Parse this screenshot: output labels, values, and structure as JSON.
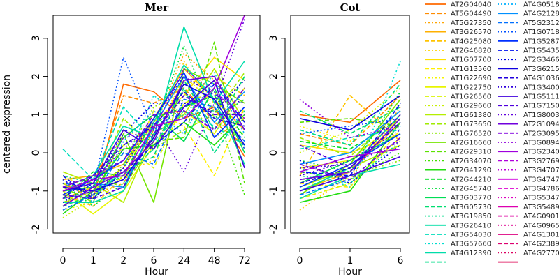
{
  "chart_data": [
    {
      "type": "line",
      "title": "Mer",
      "xlabel": "Hour",
      "ylabel": "centered expression",
      "categories": [
        "0",
        "1",
        "2",
        "6",
        "24",
        "48",
        "72"
      ],
      "yticks": [
        "-2",
        "-1",
        "0",
        "1",
        "2",
        "3"
      ],
      "ylim": [
        -2.1,
        3.6
      ],
      "series": [
        {
          "values": [
            -0.8,
            -1.2,
            1.8,
            1.6,
            0.9,
            1.2,
            -0.1
          ]
        },
        {
          "values": [
            -1.0,
            -0.9,
            1.5,
            1.3,
            1.7,
            0.8,
            0.2
          ]
        },
        {
          "values": [
            -1.3,
            -1.1,
            -0.8,
            0.6,
            2.6,
            1.9,
            1.0
          ]
        },
        {
          "values": [
            -0.7,
            -0.6,
            -0.3,
            0.9,
            2.2,
            1.4,
            0.6
          ]
        },
        {
          "values": [
            -1.1,
            -1.4,
            -0.6,
            0.4,
            1.8,
            2.0,
            1.5
          ]
        },
        {
          "values": [
            -0.9,
            -0.8,
            -0.5,
            -0.2,
            2.4,
            1.1,
            0.3
          ]
        },
        {
          "values": [
            -1.2,
            -0.9,
            -0.4,
            0.8,
            1.5,
            2.5,
            1.9
          ]
        },
        {
          "values": [
            -0.6,
            -1.0,
            -0.7,
            1.1,
            0.7,
            -0.6,
            1.2
          ]
        },
        {
          "values": [
            -1.5,
            -1.3,
            0.6,
            0.3,
            2.0,
            1.3,
            0.9
          ]
        },
        {
          "values": [
            -1.0,
            -1.6,
            -1.0,
            0.2,
            1.1,
            0.5,
            1.7
          ]
        },
        {
          "values": [
            -0.8,
            -1.1,
            0.2,
            -0.4,
            1.3,
            1.6,
            0.1
          ]
        },
        {
          "values": [
            -1.7,
            -1.2,
            -0.6,
            0.9,
            1.9,
            0.8,
            0.5
          ]
        },
        {
          "values": [
            -0.5,
            -0.8,
            -1.3,
            0.5,
            1.0,
            2.2,
            0.8
          ]
        },
        {
          "values": [
            -1.3,
            -1.0,
            0.9,
            0.1,
            0.6,
            1.0,
            2.1
          ]
        },
        {
          "values": [
            -1.4,
            -0.7,
            -0.2,
            1.2,
            1.6,
            0.4,
            0.9
          ]
        },
        {
          "values": [
            -0.9,
            -1.3,
            0.5,
            -1.3,
            2.2,
            1.8,
            1.3
          ]
        },
        {
          "values": [
            -1.1,
            -0.6,
            -0.9,
            0.3,
            0.4,
            2.9,
            -0.8
          ]
        },
        {
          "values": [
            -0.7,
            -1.2,
            -0.3,
            0.7,
            1.4,
            1.2,
            -1.1
          ]
        },
        {
          "values": [
            -1.6,
            -1.0,
            0.1,
            0.2,
            0.8,
            0.2,
            1.0
          ]
        },
        {
          "values": [
            -1.2,
            -0.5,
            -0.6,
            0.9,
            1.2,
            1.5,
            0.4
          ]
        },
        {
          "values": [
            -0.8,
            -1.4,
            -0.8,
            0.6,
            2.8,
            0.9,
            1.4
          ]
        },
        {
          "values": [
            -1.0,
            -0.9,
            0.4,
            1.0,
            0.3,
            1.7,
            0.0
          ]
        },
        {
          "values": [
            -1.4,
            -1.1,
            -0.5,
            -0.1,
            1.9,
            0.6,
            2.0
          ]
        },
        {
          "values": [
            -0.6,
            -0.8,
            0.0,
            0.5,
            1.0,
            1.1,
            0.7
          ]
        },
        {
          "values": [
            -1.3,
            -1.3,
            -1.0,
            0.8,
            2.3,
            1.4,
            -0.3
          ]
        },
        {
          "values": [
            0.1,
            -0.7,
            1.2,
            0.3,
            1.1,
            0.7,
            0.2
          ]
        },
        {
          "values": [
            -1.1,
            -1.2,
            -0.4,
            1.5,
            0.9,
            2.1,
            0.6
          ]
        },
        {
          "values": [
            -0.9,
            -0.6,
            0.7,
            0.4,
            3.3,
            1.3,
            2.4
          ]
        },
        {
          "values": [
            -1.2,
            -1.0,
            -0.6,
            0.1,
            1.7,
            0.0,
            1.1
          ]
        },
        {
          "values": [
            -0.7,
            -1.3,
            0.3,
            1.1,
            0.5,
            1.9,
            0.5
          ]
        },
        {
          "values": [
            -1.0,
            -0.8,
            -0.9,
            0.7,
            2.0,
            0.8,
            1.6
          ]
        },
        {
          "values": [
            -1.5,
            -1.1,
            0.0,
            -0.3,
            1.4,
            1.2,
            0.3
          ]
        },
        {
          "values": [
            -0.8,
            -0.9,
            2.5,
            0.6,
            1.2,
            1.6,
            0.1
          ]
        },
        {
          "values": [
            -1.1,
            -0.7,
            -0.2,
            0.9,
            2.1,
            0.4,
            1.2
          ]
        },
        {
          "values": [
            -0.6,
            -1.2,
            -0.5,
            0.2,
            0.8,
            1.8,
            0.8
          ]
        },
        {
          "values": [
            -1.3,
            -0.8,
            0.5,
            1.3,
            1.3,
            1.1,
            1.9
          ]
        },
        {
          "values": [
            -0.9,
            -1.0,
            -0.7,
            0.4,
            1.8,
            1.4,
            0.2
          ]
        },
        {
          "values": [
            -1.2,
            -0.6,
            0.2,
            0.7,
            1.6,
            0.9,
            0.7
          ]
        },
        {
          "values": [
            -0.7,
            -1.1,
            -0.4,
            0.9,
            2.0,
            1.5,
            1.3
          ]
        },
        {
          "values": [
            -1.0,
            -0.8,
            0.6,
            0.1,
            1.2,
            1.9,
            -0.4
          ]
        },
        {
          "values": [
            -1.1,
            -1.2,
            -0.9,
            0.5,
            1.5,
            1.0,
            1.0
          ]
        },
        {
          "values": [
            -0.8,
            -0.7,
            0.1,
            0.8,
            -0.5,
            1.3,
            3.5
          ]
        },
        {
          "values": [
            -1.4,
            -0.9,
            -0.5,
            0.3,
            1.9,
            2.0,
            0.6
          ]
        },
        {
          "values": [
            -0.9,
            -0.6,
            -0.2,
            1.0,
            1.1,
            0.6,
            1.7
          ]
        },
        {
          "values": [
            -1.2,
            -1.0,
            0.4,
            0.6,
            2.2,
            1.6,
            0.9
          ]
        },
        {
          "values": [
            -1.0,
            -0.7,
            -0.6,
            0.7,
            0.9,
            1.7,
            3.6
          ]
        }
      ]
    },
    {
      "type": "line",
      "title": "Cot",
      "xlabel": "Hour",
      "categories": [
        "0",
        "1",
        "6"
      ],
      "yticks": [
        "-2",
        "-1",
        "0",
        "1",
        "2",
        "3"
      ],
      "ylim": [
        -2.1,
        3.6
      ],
      "series": [
        {
          "values": [
            1.0,
            0.8,
            1.9
          ]
        },
        {
          "values": [
            0.5,
            0.2,
            1.5
          ]
        },
        {
          "values": [
            -0.3,
            -0.7,
            1.2
          ]
        },
        {
          "values": [
            -1.0,
            -0.5,
            0.8
          ]
        },
        {
          "values": [
            -0.6,
            1.5,
            0.3
          ]
        },
        {
          "values": [
            -1.5,
            -0.6,
            1.0
          ]
        },
        {
          "values": [
            0.2,
            0.0,
            0.5
          ]
        },
        {
          "values": [
            -0.8,
            -0.9,
            0.6
          ]
        },
        {
          "values": [
            0.7,
            0.3,
            1.3
          ]
        },
        {
          "values": [
            -0.4,
            -0.2,
            0.9
          ]
        },
        {
          "values": [
            -1.2,
            -0.8,
            0.4
          ]
        },
        {
          "values": [
            0.0,
            0.6,
            1.7
          ]
        },
        {
          "values": [
            -0.9,
            -0.4,
            0.2
          ]
        },
        {
          "values": [
            0.4,
            -0.1,
            1.1
          ]
        },
        {
          "values": [
            -0.7,
            -0.6,
            -0.2
          ]
        },
        {
          "values": [
            -1.1,
            -0.3,
            1.4
          ]
        },
        {
          "values": [
            0.8,
            0.9,
            0.7
          ]
        },
        {
          "values": [
            -0.5,
            -0.7,
            0.0
          ]
        },
        {
          "values": [
            -1.3,
            -1.0,
            0.8
          ]
        },
        {
          "values": [
            0.3,
            0.1,
            0.9
          ]
        },
        {
          "values": [
            -0.2,
            -0.5,
            1.6
          ]
        },
        {
          "values": [
            -0.8,
            -0.2,
            0.5
          ]
        },
        {
          "values": [
            1.1,
            0.5,
            1.2
          ]
        },
        {
          "values": [
            -0.6,
            -0.8,
            0.3
          ]
        },
        {
          "values": [
            -1.0,
            -0.4,
            1.0
          ]
        },
        {
          "values": [
            0.1,
            0.4,
            0.6
          ]
        },
        {
          "values": [
            -0.4,
            -0.9,
            2.4
          ]
        },
        {
          "values": [
            -1.2,
            -0.6,
            -0.3
          ]
        },
        {
          "values": [
            0.6,
            0.2,
            1.8
          ]
        },
        {
          "values": [
            -0.7,
            -0.5,
            0.7
          ]
        },
        {
          "values": [
            -0.3,
            0.0,
            1.1
          ]
        },
        {
          "values": [
            -1.1,
            -0.7,
            0.4
          ]
        },
        {
          "values": [
            0.5,
            0.7,
            0.9
          ]
        },
        {
          "values": [
            -0.9,
            -0.3,
            0.5
          ]
        },
        {
          "values": [
            -0.5,
            -0.6,
            1.3
          ]
        },
        {
          "values": [
            -0.2,
            -0.8,
            0.2
          ]
        },
        {
          "values": [
            0.9,
            0.6,
            1.5
          ]
        },
        {
          "values": [
            -0.8,
            -0.4,
            0.8
          ]
        },
        {
          "values": [
            -0.6,
            -0.2,
            0.6
          ]
        },
        {
          "values": [
            -1.0,
            -0.6,
            -0.1
          ]
        },
        {
          "values": [
            0.2,
            -0.4,
            1.0
          ]
        },
        {
          "values": [
            -0.4,
            -0.3,
            0.3
          ]
        },
        {
          "values": [
            -0.7,
            -0.5,
            0.9
          ]
        },
        {
          "values": [
            -0.3,
            -0.7,
            0.4
          ]
        },
        {
          "values": [
            1.4,
            0.4,
            0.7
          ]
        },
        {
          "values": [
            -0.5,
            -0.1,
            0.1
          ]
        }
      ]
    }
  ],
  "legend": {
    "placement": "right",
    "entries": [
      {
        "label": "AT2G04040",
        "color": "#ff6a00",
        "dash": "solid"
      },
      {
        "label": "AT5G04490",
        "color": "#ff8c00",
        "dash": "dashed"
      },
      {
        "label": "AT5G27350",
        "color": "#ffa500",
        "dash": "dotted"
      },
      {
        "label": "AT3G26570",
        "color": "#ffb000",
        "dash": "solid"
      },
      {
        "label": "AT4G25080",
        "color": "#ffc400",
        "dash": "dashed"
      },
      {
        "label": "AT2G46820",
        "color": "#ffd200",
        "dash": "dotted"
      },
      {
        "label": "AT1G07700",
        "color": "#ffe000",
        "dash": "solid"
      },
      {
        "label": "AT1G13560",
        "color": "#fff000",
        "dash": "dashed"
      },
      {
        "label": "AT1G22690",
        "color": "#f5f500",
        "dash": "dotted"
      },
      {
        "label": "AT1G22750",
        "color": "#e8f500",
        "dash": "solid"
      },
      {
        "label": "AT1G26560",
        "color": "#d9f500",
        "dash": "dashed"
      },
      {
        "label": "AT1G29660",
        "color": "#c8f000",
        "dash": "dotted"
      },
      {
        "label": "AT1G61380",
        "color": "#b5ee00",
        "dash": "solid"
      },
      {
        "label": "AT1G73650",
        "color": "#a0eb00",
        "dash": "dashed"
      },
      {
        "label": "AT1G76520",
        "color": "#8ce800",
        "dash": "dotted"
      },
      {
        "label": "AT2G16660",
        "color": "#74e500",
        "dash": "solid"
      },
      {
        "label": "AT2G29310",
        "color": "#5ce200",
        "dash": "dashed"
      },
      {
        "label": "AT2G34070",
        "color": "#40e000",
        "dash": "dotted"
      },
      {
        "label": "AT2G41290",
        "color": "#22dd10",
        "dash": "solid"
      },
      {
        "label": "AT2G44210",
        "color": "#00dd22",
        "dash": "dashed"
      },
      {
        "label": "AT2G45740",
        "color": "#00dd3a",
        "dash": "dotted"
      },
      {
        "label": "AT3G03770",
        "color": "#00dd55",
        "dash": "solid"
      },
      {
        "label": "AT3G05730",
        "color": "#00dd70",
        "dash": "dashed"
      },
      {
        "label": "AT3G19850",
        "color": "#00dd8a",
        "dash": "dotted"
      },
      {
        "label": "AT3G26410",
        "color": "#00dda5",
        "dash": "solid"
      },
      {
        "label": "AT3G54030",
        "color": "#00ddbb",
        "dash": "dashed"
      },
      {
        "label": "AT3G57660",
        "color": "#00ddd0",
        "dash": "dotted"
      },
      {
        "label": "AT4G12390",
        "color": "#00ddaa",
        "dash": "solid"
      },
      {
        "label": "",
        "color": "#00dd88",
        "dash": "dashed"
      },
      {
        "label": "AT4G0518",
        "color": "#00b0ff",
        "dash": "dotted"
      },
      {
        "label": "AT4G2128",
        "color": "#0090ff",
        "dash": "solid"
      },
      {
        "label": "AT5G2312",
        "color": "#0070ff",
        "dash": "dashed"
      },
      {
        "label": "AT1G0718",
        "color": "#0050ff",
        "dash": "dotted"
      },
      {
        "label": "AT1G5287",
        "color": "#0030ff",
        "dash": "solid"
      },
      {
        "label": "AT1G5435",
        "color": "#0010f0",
        "dash": "dashed"
      },
      {
        "label": "AT2G3466",
        "color": "#0000e6",
        "dash": "dotted"
      },
      {
        "label": "AT3G6215",
        "color": "#1000e0",
        "dash": "solid"
      },
      {
        "label": "AT4G1036",
        "color": "#2000dd",
        "dash": "dashed"
      },
      {
        "label": "AT1G3400",
        "color": "#3000dd",
        "dash": "dotted"
      },
      {
        "label": "AT1G5111",
        "color": "#4000dd",
        "dash": "solid"
      },
      {
        "label": "AT1G7150",
        "color": "#5000dd",
        "dash": "dashed"
      },
      {
        "label": "AT1G8003",
        "color": "#6000dd",
        "dash": "dotted"
      },
      {
        "label": "AT2G1094",
        "color": "#7000dd",
        "dash": "solid"
      },
      {
        "label": "AT2G3095",
        "color": "#8000dd",
        "dash": "dashed"
      },
      {
        "label": "AT3G0894",
        "color": "#9000dd",
        "dash": "dotted"
      },
      {
        "label": "AT3G2340",
        "color": "#a000dd",
        "dash": "solid"
      },
      {
        "label": "AT3G2769",
        "color": "#b000dd",
        "dash": "dashed"
      },
      {
        "label": "AT3G4707",
        "color": "#c000dd",
        "dash": "dotted"
      },
      {
        "label": "AT3G4747",
        "color": "#d000dd",
        "dash": "solid"
      },
      {
        "label": "AT3G4786",
        "color": "#dd00d0",
        "dash": "dashed"
      },
      {
        "label": "AT3G5347",
        "color": "#dd00c0",
        "dash": "dotted"
      },
      {
        "label": "AT3G5489",
        "color": "#dd00b0",
        "dash": "solid"
      },
      {
        "label": "AT4G0901",
        "color": "#dd00a0",
        "dash": "dashed"
      },
      {
        "label": "AT4G0965",
        "color": "#dd0090",
        "dash": "dotted"
      },
      {
        "label": "AT4G1301",
        "color": "#dd0080",
        "dash": "solid"
      },
      {
        "label": "AT4G2389",
        "color": "#dd0070",
        "dash": "dashed"
      },
      {
        "label": "AT4G2770",
        "color": "#dd0060",
        "dash": "dotted"
      },
      {
        "label": "",
        "color": "#dd0050",
        "dash": "solid"
      }
    ]
  }
}
